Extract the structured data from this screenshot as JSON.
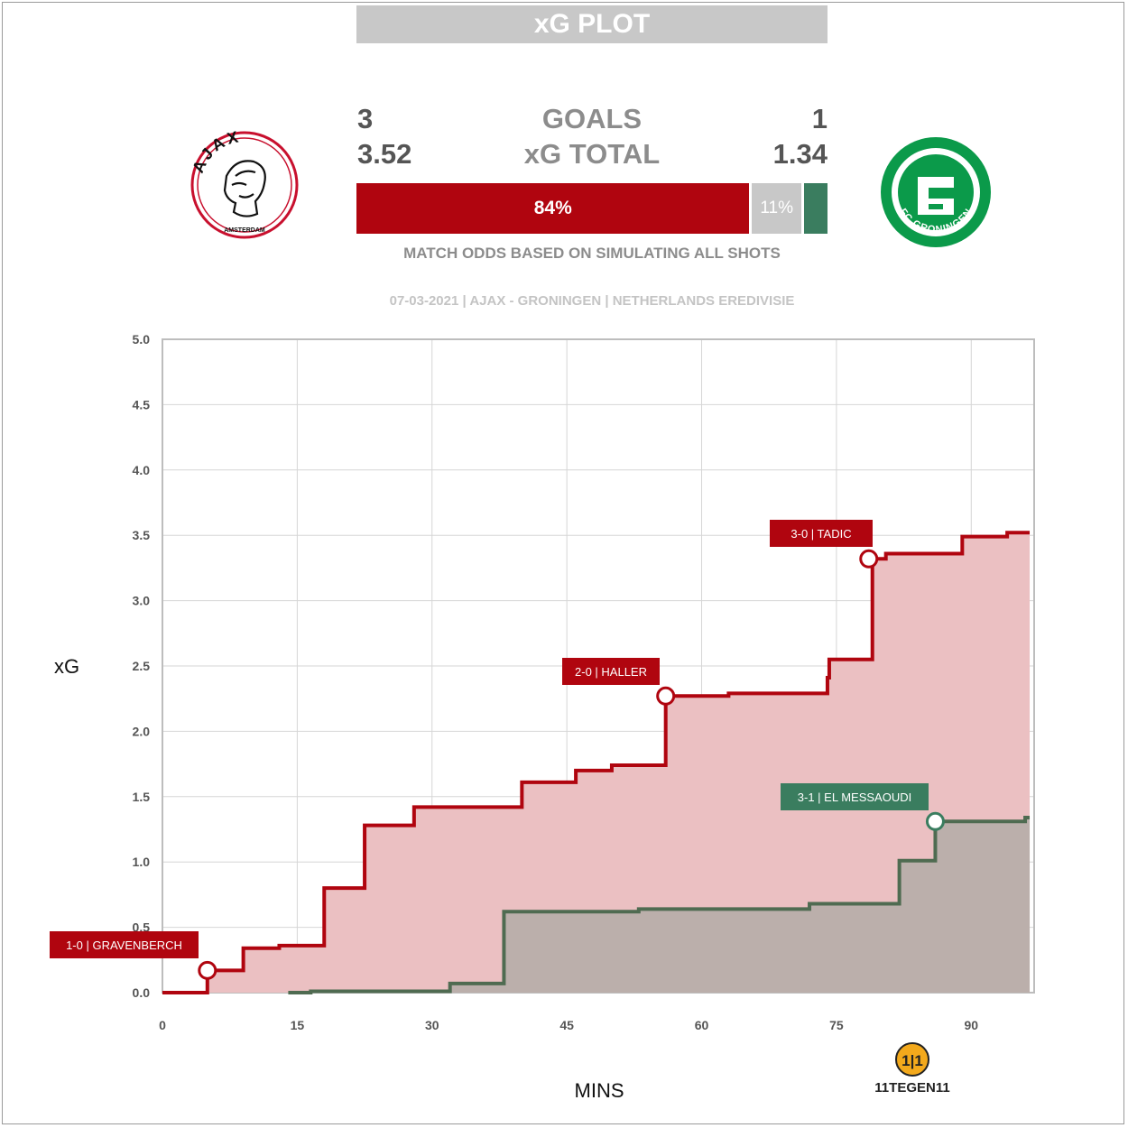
{
  "title": "xG PLOT",
  "home": {
    "name": "AJAX",
    "goals": "3",
    "xg": "3.52",
    "win_pct": 84,
    "win_label": "84%",
    "color": "#b0050f",
    "logo_text": "AJAX",
    "logo_sub": "AMSTERDAM"
  },
  "away": {
    "name": "GRONINGEN",
    "goals": "1",
    "xg": "1.34",
    "win_pct": 5,
    "color": "#3a7d5f",
    "logo_text": "FC GRONINGEN"
  },
  "draw": {
    "pct": 11,
    "label": "11%"
  },
  "labels": {
    "goals": "GOALS",
    "xg_total": "xG TOTAL",
    "odds_note": "MATCH ODDS BASED ON SIMULATING ALL SHOTS"
  },
  "subtitle": "07-03-2021 | AJAX - GRONINGEN | NETHERLANDS EREDIVISIE",
  "watermark": "11TEGEN11",
  "chart_data": {
    "type": "line",
    "xlabel": "MINS",
    "ylabel": "xG",
    "xlim": [
      0,
      97
    ],
    "ylim": [
      0,
      5
    ],
    "x_ticks": [
      "0",
      "15",
      "30",
      "45",
      "60",
      "75",
      "90"
    ],
    "y_ticks": [
      "0.0",
      "0.5",
      "1.0",
      "1.5",
      "2.0",
      "2.5",
      "3.0",
      "3.5",
      "4.0",
      "4.5",
      "5.0"
    ],
    "grid": true,
    "series": [
      {
        "team": "AJAX",
        "color": "#b0050f",
        "fill": "#ebc0c2",
        "x": [
          5,
          9,
          13,
          18,
          22.5,
          28,
          40,
          46,
          50,
          56,
          63,
          74,
          74.2,
          79,
          80.5,
          89,
          94,
          96.5
        ],
        "y": [
          0.17,
          0.34,
          0.36,
          0.8,
          1.28,
          1.42,
          1.61,
          1.7,
          1.74,
          2.27,
          2.29,
          2.41,
          2.55,
          3.32,
          3.36,
          3.49,
          3.52,
          3.52
        ]
      },
      {
        "team": "GRONINGEN",
        "color": "#4f6b51",
        "fill": "#b8aeaa",
        "x": [
          16.5,
          32,
          38,
          53,
          72,
          82,
          86,
          96,
          96.5
        ],
        "y": [
          0.01,
          0.07,
          0.62,
          0.64,
          0.68,
          1.01,
          1.31,
          1.34,
          1.34
        ]
      }
    ],
    "annotations": [
      {
        "label": "1-0 | GRAVENBERCH",
        "x": 5,
        "y": 0.17,
        "team": "home"
      },
      {
        "label": "2-0 | HALLER",
        "x": 56,
        "y": 2.27,
        "team": "home"
      },
      {
        "label": "3-0 | TADIC",
        "x": 78.6,
        "y": 3.32,
        "team": "home"
      },
      {
        "label": "3-1 | EL MESSAOUDI",
        "x": 86,
        "y": 1.31,
        "team": "away"
      }
    ]
  }
}
